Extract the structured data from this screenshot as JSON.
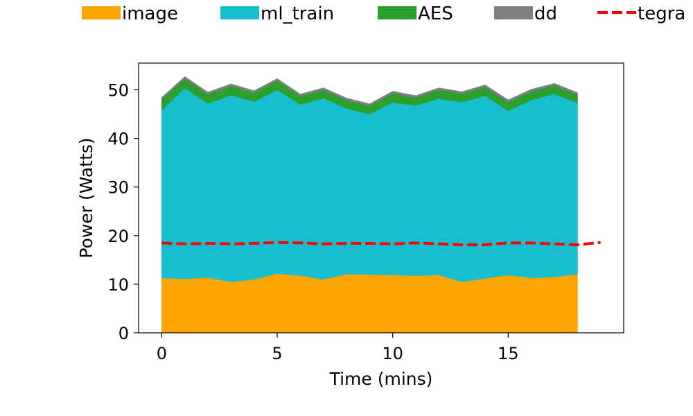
{
  "chart_data": {
    "type": "area",
    "stacked": true,
    "title": "",
    "xlabel": "Time (mins)",
    "ylabel": "Power (Watts)",
    "xlim": [
      -1,
      20
    ],
    "ylim": [
      0,
      55.5
    ],
    "xticks": [
      0,
      5,
      10,
      15
    ],
    "yticks": [
      0,
      10,
      20,
      30,
      40,
      50
    ],
    "grid": false,
    "legend_position": "top",
    "x": [
      0,
      1,
      2,
      3,
      4,
      5,
      6,
      7,
      8,
      9,
      10,
      11,
      12,
      13,
      14,
      15,
      16,
      17,
      18
    ],
    "series": [
      {
        "name": "image",
        "color": "#ffa500",
        "values": [
          11.3,
          11.1,
          11.4,
          10.5,
          11.0,
          12.2,
          11.8,
          11.0,
          12.1,
          12.0,
          11.9,
          11.8,
          11.9,
          10.5,
          11.2,
          11.9,
          11.3,
          11.5,
          12.1
        ]
      },
      {
        "name": "ml_train",
        "color": "#17becf",
        "values": [
          34.5,
          39.3,
          35.8,
          38.4,
          36.6,
          37.8,
          35.2,
          37.3,
          34.1,
          33.0,
          35.5,
          35.0,
          36.3,
          37.0,
          37.6,
          33.8,
          36.6,
          37.7,
          35.2
        ]
      },
      {
        "name": "AES",
        "color": "#2ca02c",
        "values": [
          2.2,
          1.9,
          1.9,
          1.9,
          1.8,
          1.9,
          1.7,
          1.7,
          1.7,
          1.7,
          1.9,
          1.6,
          1.8,
          1.7,
          1.8,
          1.8,
          1.8,
          1.7,
          1.7
        ]
      },
      {
        "name": "dd",
        "color": "#7f7f7f",
        "values": [
          0.4,
          0.4,
          0.4,
          0.4,
          0.4,
          0.4,
          0.4,
          0.4,
          0.4,
          0.4,
          0.4,
          0.4,
          0.4,
          0.4,
          0.4,
          0.4,
          0.4,
          0.4,
          0.4
        ]
      }
    ],
    "line_series": [
      {
        "name": "tegra",
        "color": "#ff0000",
        "style": "dashed",
        "x": [
          0,
          1,
          2,
          3,
          4,
          5,
          6,
          7,
          8,
          9,
          10,
          11,
          12,
          13,
          14,
          15,
          16,
          17,
          18,
          19
        ],
        "values": [
          18.5,
          18.3,
          18.4,
          18.3,
          18.4,
          18.6,
          18.5,
          18.3,
          18.4,
          18.4,
          18.3,
          18.5,
          18.3,
          18.1,
          18.1,
          18.5,
          18.5,
          18.3,
          18.1,
          18.6
        ]
      }
    ]
  }
}
